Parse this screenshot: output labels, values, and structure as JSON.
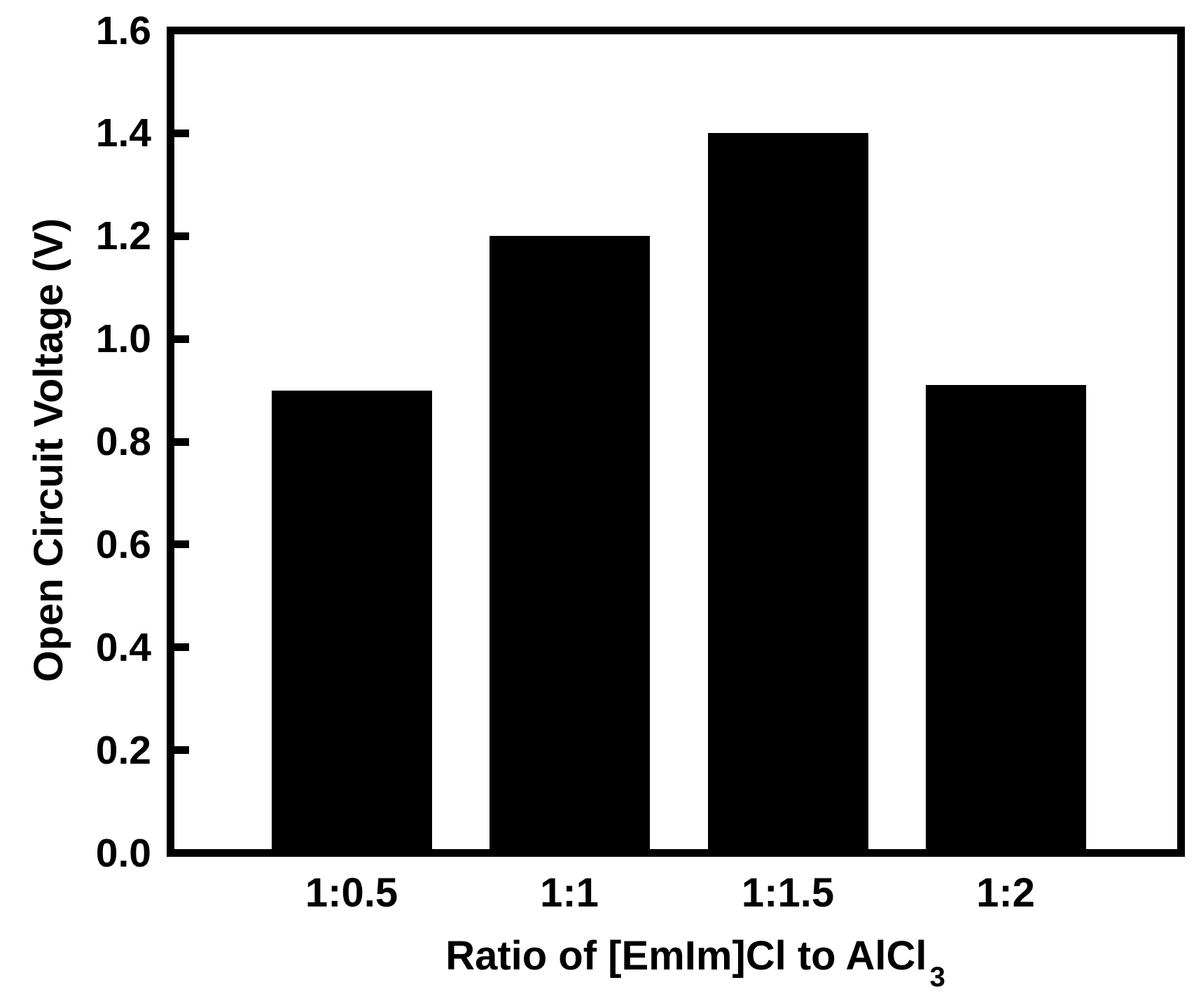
{
  "figure": {
    "background_color": "#ffffff"
  },
  "chart_data": {
    "type": "bar",
    "title": "",
    "categories": [
      "1:0.5",
      "1:1",
      "1:1.5",
      "1:2"
    ],
    "values": [
      0.9,
      1.2,
      1.4,
      0.91
    ],
    "xlabel_main": "Ratio of [EmIm]Cl to AlCl",
    "xlabel_subscript": "3",
    "ylabel": "Open Circuit Voltage (V)",
    "ylim": [
      0.0,
      1.6
    ],
    "ytick_interval": 0.2,
    "ytick_labels": [
      "0.0",
      "0.2",
      "0.4",
      "0.6",
      "0.8",
      "1.0",
      "1.2",
      "1.4",
      "1.6"
    ],
    "grid": false,
    "legend": "none",
    "tick_direction": "in",
    "bar_color": "#000000",
    "axis_color": "#000000",
    "text_color": "#000000",
    "background_color": "#ffffff"
  }
}
